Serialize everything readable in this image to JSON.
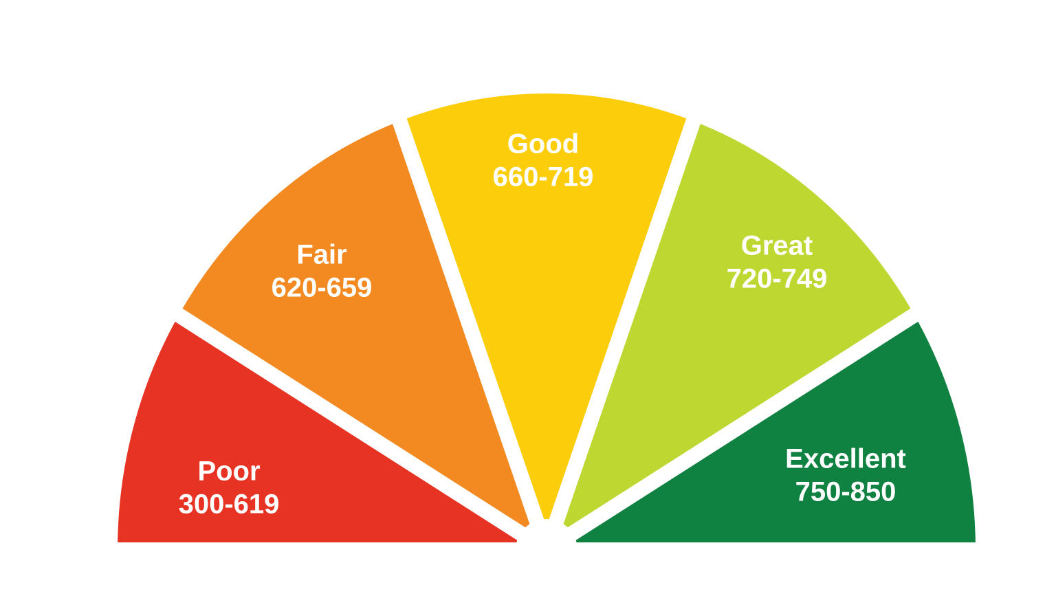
{
  "segments": [
    {
      "label": "Poor",
      "range": "300-619"
    },
    {
      "label": "Fair",
      "range": "620-659"
    },
    {
      "label": "Good",
      "range": "660-719"
    },
    {
      "label": "Great",
      "range": "720-749"
    },
    {
      "label": "Excellent",
      "range": "750-850"
    }
  ]
}
